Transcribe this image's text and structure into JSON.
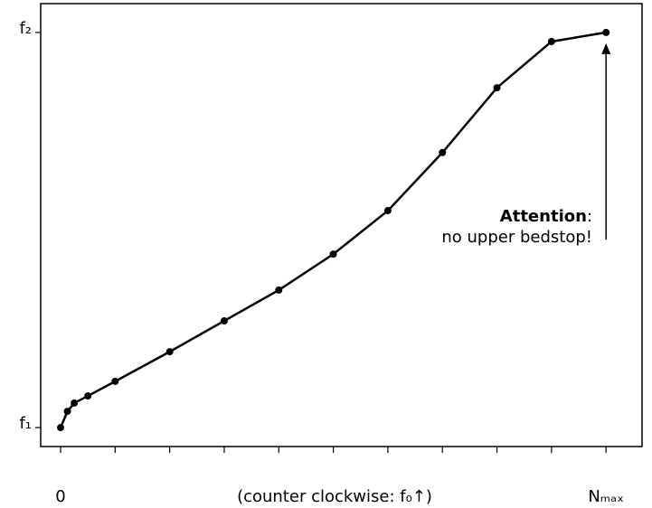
{
  "chart_data": {
    "type": "line",
    "x_label": "(counter clockwise: f₀↑)",
    "x": [
      0,
      0.125,
      0.25,
      0.5,
      1,
      2,
      3,
      4,
      5,
      6,
      7,
      8,
      9,
      10
    ],
    "series": [
      {
        "color": "#000000",
        "values": [
          0,
          0.041,
          0.062,
          0.08,
          0.117,
          0.192,
          0.27,
          0.348,
          0.439,
          0.549,
          0.696,
          0.86,
          0.977,
          1
        ]
      }
    ],
    "xlim": [
      -0.365,
      10.66
    ],
    "ylim": [
      -0.048,
      1.073
    ],
    "xticks": [
      {
        "value": 0,
        "label": "0"
      },
      {
        "value": 1,
        "label": null
      },
      {
        "value": 2,
        "label": null
      },
      {
        "value": 3,
        "label": null
      },
      {
        "value": 4,
        "label": null
      },
      {
        "value": 5,
        "label": null
      },
      {
        "value": 6,
        "label": null
      },
      {
        "value": 7,
        "label": null
      },
      {
        "value": 8,
        "label": null
      },
      {
        "value": 9,
        "label": null
      },
      {
        "value": 10,
        "label": "Nₘₐₓ"
      }
    ],
    "yticks": [
      {
        "value": 0,
        "label": "f₁"
      },
      {
        "value": 1,
        "label": "f₂"
      }
    ],
    "grid": false,
    "annotation": {
      "emphasis": "Attention",
      "suffix": ":",
      "text": "no upper bedstop!"
    }
  }
}
